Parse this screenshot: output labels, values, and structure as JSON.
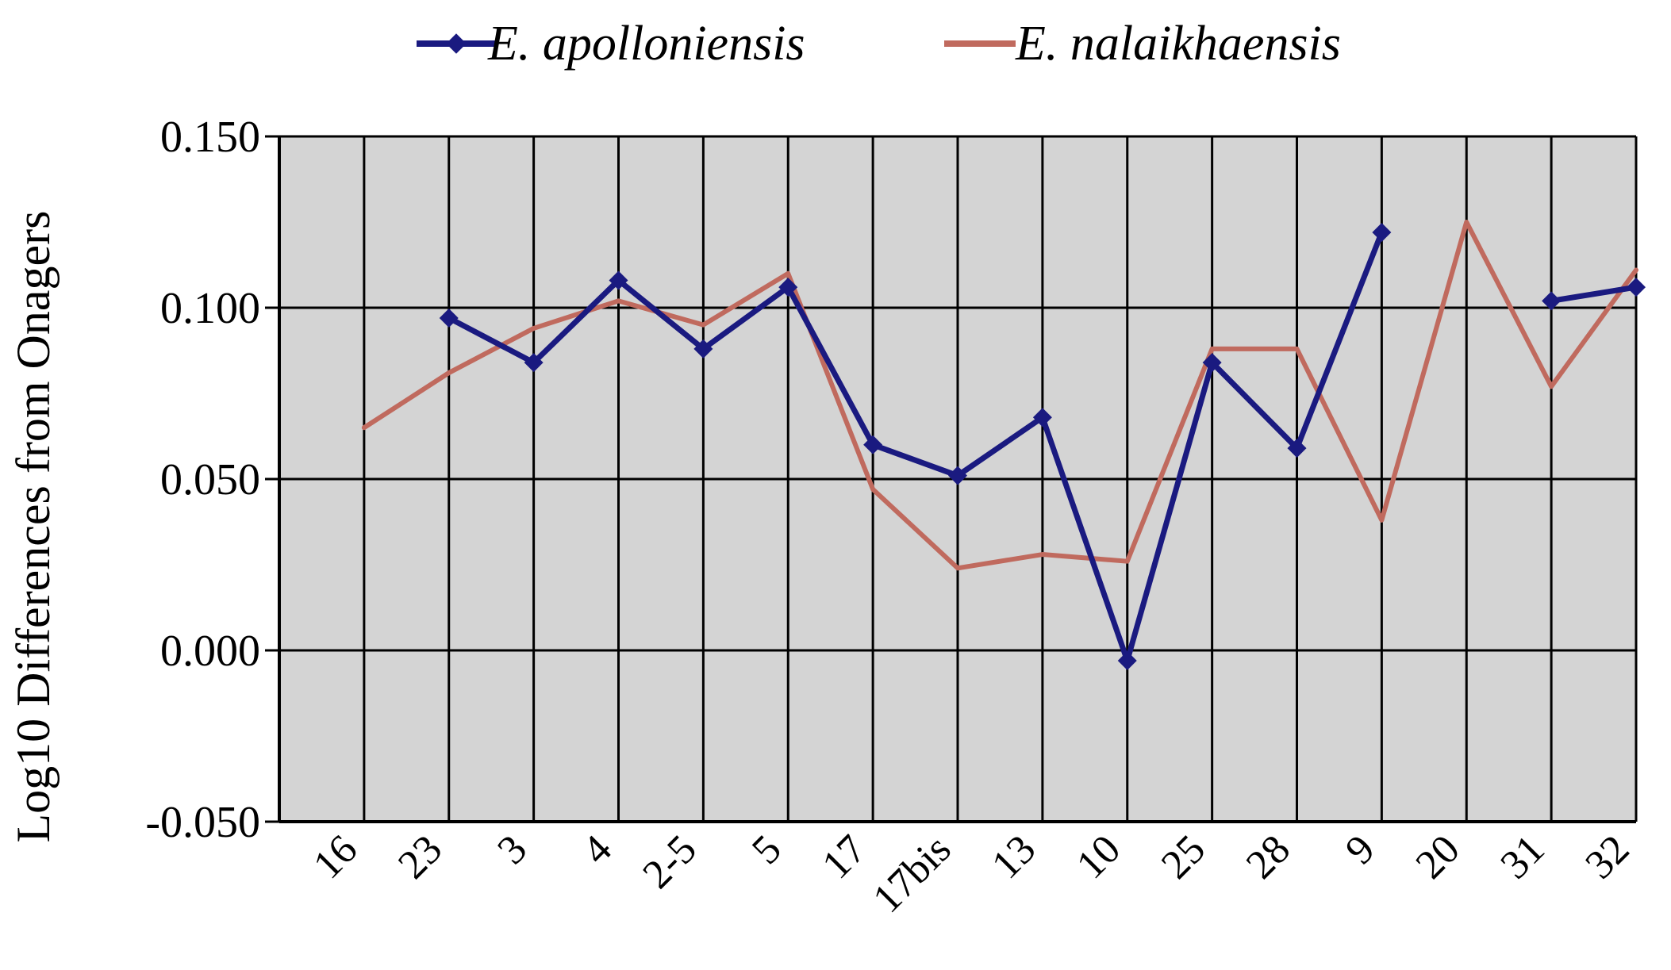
{
  "chart_data": {
    "type": "line",
    "title": "",
    "xlabel": "",
    "ylabel": "Log10 Differences from Onagers",
    "categories": [
      "16",
      "23",
      "3",
      "4",
      "2-5",
      "5",
      "17",
      "17bis",
      "13",
      "10",
      "25",
      "28",
      "9",
      "20",
      "31",
      "32"
    ],
    "ylim": [
      -0.05,
      0.15
    ],
    "yticks": [
      -0.05,
      0.0,
      0.05,
      0.1,
      0.15
    ],
    "ytick_labels": [
      "-0.050",
      "0.000",
      "0.050",
      "0.100",
      "0.150"
    ],
    "grid": true,
    "legend_position": "top",
    "series": [
      {
        "name": "E. apolloniensis",
        "color": "#1a1a80",
        "marker": "diamond",
        "values": [
          null,
          0.097,
          0.084,
          0.108,
          0.088,
          0.106,
          0.06,
          0.051,
          0.068,
          -0.003,
          0.084,
          0.059,
          0.122,
          null,
          0.102,
          0.106
        ]
      },
      {
        "name": "E. nalaikhaensis",
        "color": "#c06a5e",
        "marker": "none",
        "values": [
          0.065,
          0.081,
          0.094,
          0.102,
          0.095,
          0.11,
          0.047,
          0.024,
          0.028,
          0.026,
          0.088,
          0.088,
          0.038,
          0.125,
          0.077,
          0.111
        ]
      }
    ]
  }
}
